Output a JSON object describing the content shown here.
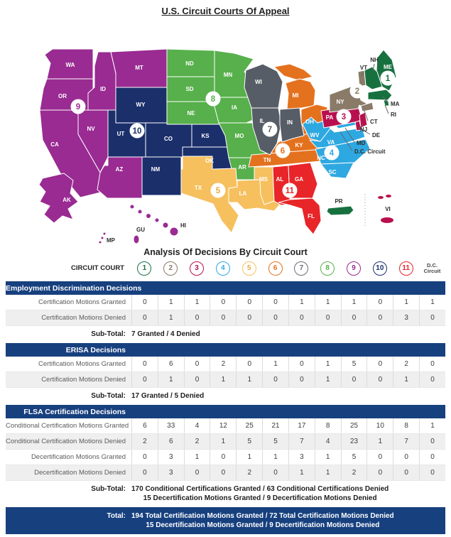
{
  "page": {
    "title": "U.S. Circuit Courts Of Appeal"
  },
  "colors": {
    "circuit_1": "#17713F",
    "circuit_2": "#8A7A68",
    "circuit_3": "#B8104E",
    "circuit_4": "#2EA8E0",
    "circuit_5": "#F6C05E",
    "circuit_6": "#E4711E",
    "circuit_7": "#575D66",
    "circuit_8": "#57B04B",
    "circuit_9": "#992B92",
    "circuit_10": "#1B2F6B",
    "circuit_11": "#E82529",
    "header_bar": "#17407E",
    "row_alt": "#EFEFEF"
  },
  "map": {
    "state_labels": {
      "WA": "WA",
      "OR": "OR",
      "CA": "CA",
      "NV": "NV",
      "ID": "ID",
      "MT": "MT",
      "AK": "AK",
      "HI": "HI",
      "GU": "GU",
      "MP": "MP",
      "AZ": "AZ",
      "WY": "WY",
      "UT": "UT",
      "CO": "CO",
      "NM": "NM",
      "KS": "KS",
      "OK": "OK",
      "TX": "TX",
      "ND": "ND",
      "SD": "SD",
      "NE": "NE",
      "MN": "MN",
      "IA": "IA",
      "MO": "MO",
      "AR": "AR",
      "LA": "LA",
      "MS": "MS",
      "WI": "WI",
      "IL": "IL",
      "IN": "IN",
      "MI": "MI",
      "OH": "OH",
      "KY": "KY",
      "TN": "TN",
      "AL": "AL",
      "GA": "GA",
      "FL": "FL",
      "WV": "WV",
      "VA": "VA",
      "NC": "NC",
      "SC": "SC",
      "PA": "PA",
      "NY": "NY",
      "ME": "ME",
      "PR": "PR",
      "VI": "VI"
    },
    "callout_labels": {
      "NH": "NH",
      "VT": "VT",
      "MA": "MA",
      "RI": "RI",
      "CT": "CT",
      "NJ": "NJ",
      "DE": "DE",
      "MD": "MD",
      "DC": "D.C. Circuit"
    },
    "badges": {
      "b1": "1",
      "b2": "2",
      "b3": "3",
      "b4": "4",
      "b5": "5",
      "b6": "6",
      "b7": "7",
      "b8": "8",
      "b9": "9",
      "b10": "10",
      "b11": "11"
    }
  },
  "chart_data": {
    "type": "table",
    "title": "Analysis Of Decisions By Circuit Court",
    "header": {
      "label": "CIRCUIT COURT",
      "circuits": [
        "1",
        "2",
        "3",
        "4",
        "5",
        "6",
        "7",
        "8",
        "9",
        "10",
        "11"
      ],
      "dc_line1": "D.C.",
      "dc_line2": "Circuit"
    },
    "columns": [
      "1",
      "2",
      "3",
      "4",
      "5",
      "6",
      "7",
      "8",
      "9",
      "10",
      "11",
      "D.C. Circuit"
    ],
    "sections": [
      {
        "title": "Employment Discrimination Decisions",
        "rows": [
          {
            "label": "Certification Motions Granted",
            "values": [
              0,
              1,
              1,
              0,
              0,
              0,
              1,
              1,
              1,
              0,
              1,
              1
            ]
          },
          {
            "label": "Certification Motions Denied",
            "values": [
              0,
              1,
              0,
              0,
              0,
              0,
              0,
              0,
              0,
              0,
              3,
              0
            ]
          }
        ],
        "subtotal_label": "Sub-Total:",
        "subtotal_lines": [
          "7 Granted / 4 Denied"
        ]
      },
      {
        "title": "ERISA Decisions",
        "rows": [
          {
            "label": "Certification Motions Granted",
            "values": [
              0,
              6,
              0,
              2,
              0,
              1,
              0,
              1,
              5,
              0,
              2,
              0
            ]
          },
          {
            "label": "Certification Motions Denied",
            "values": [
              0,
              1,
              0,
              1,
              1,
              0,
              0,
              1,
              0,
              0,
              1,
              0
            ]
          }
        ],
        "subtotal_label": "Sub-Total:",
        "subtotal_lines": [
          "17 Granted / 5 Denied"
        ]
      },
      {
        "title": "FLSA Certification Decisions",
        "rows": [
          {
            "label": "Conditional Certification Motions Granted",
            "values": [
              6,
              33,
              4,
              12,
              25,
              21,
              17,
              8,
              25,
              10,
              8,
              1
            ]
          },
          {
            "label": "Conditional Certification Motions Denied",
            "values": [
              2,
              6,
              2,
              1,
              5,
              5,
              7,
              4,
              23,
              1,
              7,
              0
            ]
          },
          {
            "label": "Decertification Motions Granted",
            "values": [
              0,
              3,
              1,
              0,
              1,
              1,
              3,
              1,
              5,
              0,
              0,
              0
            ]
          },
          {
            "label": "Decertification Motions Denied",
            "values": [
              0,
              3,
              0,
              0,
              2,
              0,
              1,
              1,
              2,
              0,
              0,
              0
            ]
          }
        ],
        "subtotal_label": "Sub-Total:",
        "subtotal_lines": [
          "170 Conditional Certifications Granted / 63 Conditional Certifications Denied",
          "15 Decertification Motions Granted / 9 Decertification Motions Denied"
        ]
      }
    ],
    "total": {
      "label": "Total:",
      "lines": [
        "194 Total Certification Motions Granted / 72 Total Certification Motions Denied",
        "15 Decertification Motions Granted / 9 Decertification Motions Denied"
      ]
    }
  }
}
